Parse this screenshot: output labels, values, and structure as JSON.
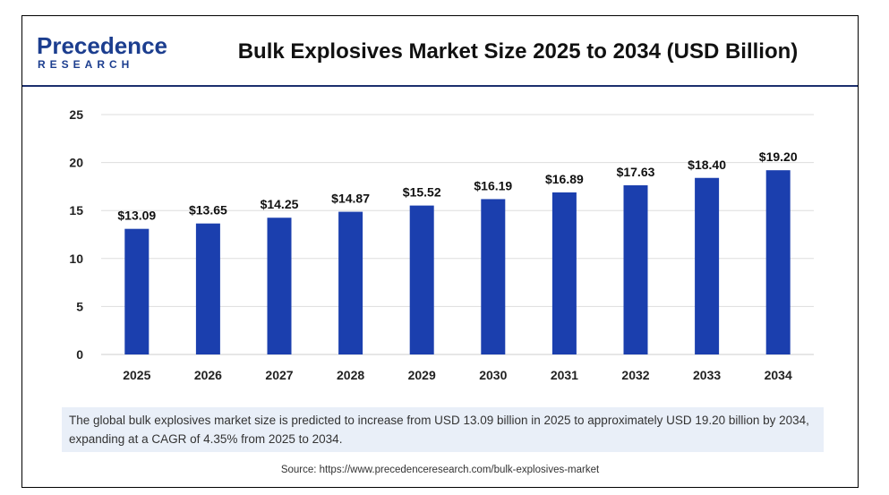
{
  "header": {
    "logo_word": "Precedence",
    "logo_sub": "RESEARCH",
    "title": "Bulk Explosives Market Size 2025 to 2034 (USD Billion)"
  },
  "colors": {
    "bar": "#1b3fae",
    "header_rule": "#1c2f6e",
    "logo_blue": "#1c3e8f",
    "note_bg": "#e9eff8",
    "grid": "#dddddd"
  },
  "chart_data": {
    "type": "bar",
    "categories": [
      "2025",
      "2026",
      "2027",
      "2028",
      "2029",
      "2030",
      "2031",
      "2032",
      "2033",
      "2034"
    ],
    "values": [
      13.09,
      13.65,
      14.25,
      14.87,
      15.52,
      16.19,
      16.89,
      17.63,
      18.4,
      19.2
    ],
    "data_labels": [
      "$13.09",
      "$13.65",
      "$14.25",
      "$14.87",
      "$15.52",
      "$16.19",
      "$16.89",
      "$17.63",
      "$18.40",
      "$19.20"
    ],
    "yticks": [
      0,
      5,
      10,
      15,
      20,
      25
    ],
    "ylim": [
      0,
      25
    ],
    "grid": true,
    "legend": false
  },
  "note": "The global bulk explosives market size is predicted to increase from USD 13.09 billion in 2025 to approximately USD 19.20 billion by 2034, expanding at a CAGR of 4.35% from 2025 to 2034.",
  "source": "Source: https://www.precedenceresearch.com/bulk-explosives-market"
}
